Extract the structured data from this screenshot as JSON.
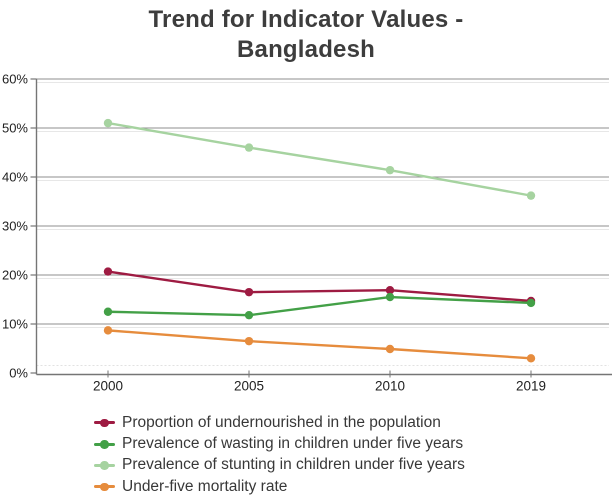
{
  "title": "Trend for Indicator Values - Bangladesh",
  "title_lines": [
    "Trend for Indicator Values -",
    "Bangladesh"
  ],
  "chart_data": {
    "type": "line",
    "title": "Trend for Indicator Values - Bangladesh",
    "categories": [
      "2000",
      "2005",
      "2010",
      "2019"
    ],
    "series": [
      {
        "name": "Proportion of undernourished in the population",
        "color": "#9e1b42",
        "values": [
          20.7,
          16.5,
          16.9,
          14.7
        ]
      },
      {
        "name": "Prevalence of wasting in children under five years",
        "color": "#43a047",
        "values": [
          12.5,
          11.8,
          15.5,
          14.3
        ]
      },
      {
        "name": "Prevalence of stunting in children under five years",
        "color": "#a6d3a0",
        "values": [
          51.0,
          46.0,
          41.4,
          36.2
        ]
      },
      {
        "name": "Under-five mortality rate",
        "color": "#e68c3d",
        "values": [
          8.7,
          6.5,
          4.9,
          3.0
        ]
      }
    ],
    "xlabel": "",
    "ylabel": "",
    "ylim": [
      0,
      60
    ],
    "y_ticks": [
      {
        "value": 0,
        "label": "0%"
      },
      {
        "value": 10,
        "label": "10%"
      },
      {
        "value": 20,
        "label": "20%"
      },
      {
        "value": 30,
        "label": "30%"
      },
      {
        "value": 40,
        "label": "40%"
      },
      {
        "value": 50,
        "label": "50%"
      },
      {
        "value": 60,
        "label": "60%"
      }
    ],
    "grid": "horizontal",
    "legend_position": "bottom-left",
    "marker": "circle"
  },
  "colors": {
    "background": "#ffffff",
    "title_text": "#3d3d3d",
    "axis_text": "#1f1f1f",
    "legend_text": "#383838",
    "gridline": "#8f8f8f",
    "minor_gridline": "#e7e7e7",
    "axis_line": "#757575"
  }
}
